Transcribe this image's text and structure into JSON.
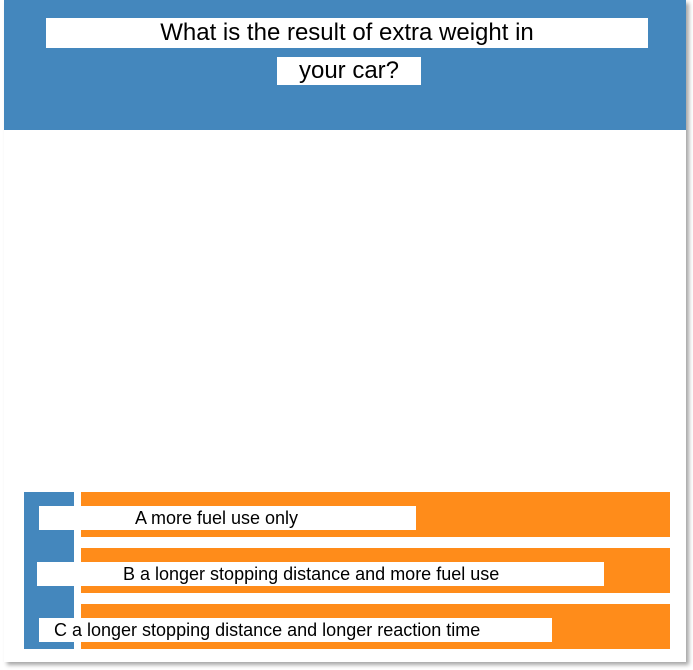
{
  "question": {
    "line1": "What is the result of extra weight in",
    "line2": "your car?"
  },
  "answers": [
    {
      "label": "A more fuel use only"
    },
    {
      "label": "B a longer stopping distance and more fuel use"
    },
    {
      "label": "C a longer stopping distance and longer reaction time"
    }
  ],
  "colors": {
    "header": "#4487bd",
    "answer_accent": "#4487bd",
    "answer_background": "#ff8c1a",
    "text_box": "#ffffff"
  }
}
